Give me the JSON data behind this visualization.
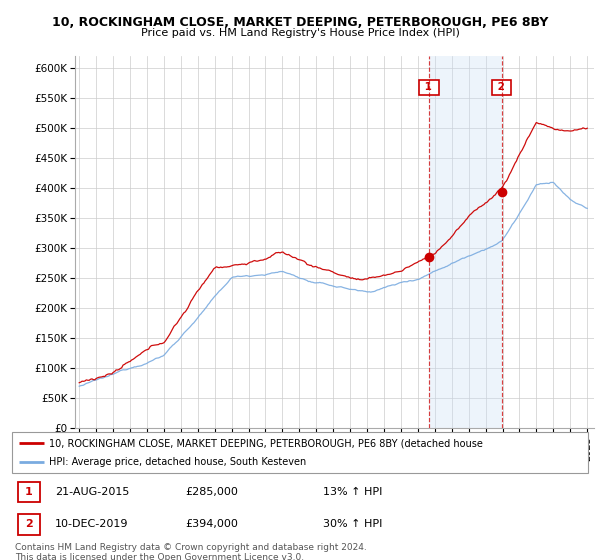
{
  "title1": "10, ROCKINGHAM CLOSE, MARKET DEEPING, PETERBOROUGH, PE6 8BY",
  "title2": "Price paid vs. HM Land Registry's House Price Index (HPI)",
  "background_color": "#ffffff",
  "plot_bg_color": "#ffffff",
  "grid_color": "#cccccc",
  "shade_color": "#cce0f5",
  "sale1_x": 2015.64,
  "sale1_y": 285000,
  "sale2_x": 2019.94,
  "sale2_y": 394000,
  "sale1_label": "21-AUG-2015",
  "sale1_price": "£285,000",
  "sale1_hpi": "13% ↑ HPI",
  "sale2_label": "10-DEC-2019",
  "sale2_price": "£394,000",
  "sale2_hpi": "30% ↑ HPI",
  "legend_line1": "10, ROCKINGHAM CLOSE, MARKET DEEPING, PETERBOROUGH, PE6 8BY (detached house",
  "legend_line2": "HPI: Average price, detached house, South Kesteven",
  "footer": "Contains HM Land Registry data © Crown copyright and database right 2024.\nThis data is licensed under the Open Government Licence v3.0.",
  "line_color_red": "#cc0000",
  "line_color_blue": "#7aabe0",
  "ylim_max": 620000,
  "xlim_start": 1994.75,
  "xlim_end": 2025.4,
  "yticks": [
    0,
    50000,
    100000,
    150000,
    200000,
    250000,
    300000,
    350000,
    400000,
    450000,
    500000,
    550000,
    600000
  ],
  "ytick_labels": [
    "£0",
    "£50K",
    "£100K",
    "£150K",
    "£200K",
    "£250K",
    "£300K",
    "£350K",
    "£400K",
    "£450K",
    "£500K",
    "£550K",
    "£600K"
  ]
}
